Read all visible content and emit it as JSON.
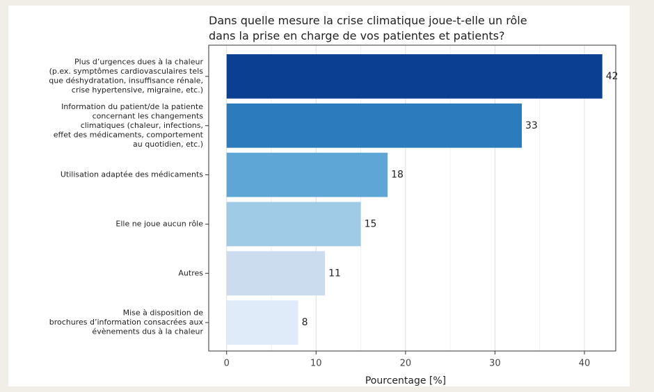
{
  "chart_data": {
    "type": "hbar",
    "title": "Dans quelle mesure la crise climatique joue-t-elle un rôle\ndans la prise en charge de vos patientes et patients?",
    "xlabel": "Pourcentage [%]",
    "categories": [
      "Plus d’urgences dues à la chaleur\n(p.ex. symptômes cardiovasculaires tels\nque déshydratation, insuffisance rénale,\ncrise hypertensive, migraine, etc.)",
      "Information du patient/de la patiente\nconcernant les changements\nclimatiques (chaleur, infections,\neffet des médicaments, comportement\nau quotidien, etc.)",
      "Utilisation adaptée des médicaments",
      "Elle ne joue aucun rôle",
      "Autres",
      "Mise à disposition de\nbrochures d’information consacrées aux\névènements dus à la chaleur"
    ],
    "values": [
      42,
      33,
      18,
      15,
      11,
      8
    ],
    "colors": [
      "#0b3f91",
      "#2b7bbd",
      "#5da6d6",
      "#a0cbe6",
      "#cadcee",
      "#dfebf8"
    ],
    "xlim": [
      -2,
      43.5
    ],
    "xticks": [
      0,
      10,
      20,
      30,
      40
    ],
    "xminor": [
      5,
      15,
      25,
      35
    ],
    "grid": true
  }
}
